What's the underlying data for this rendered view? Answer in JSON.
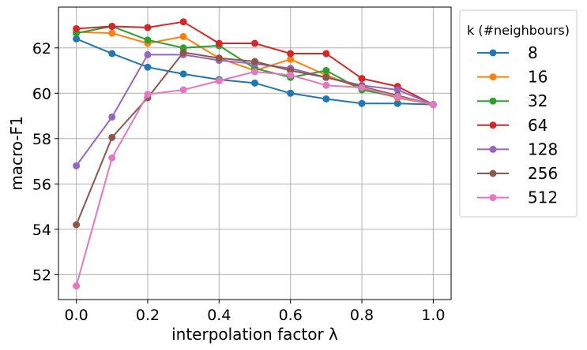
{
  "chart_data": {
    "type": "line",
    "xlabel": "interpolation factor λ",
    "ylabel": "macro-F1",
    "xlim": [
      -0.05,
      1.05
    ],
    "ylim": [
      50.9,
      63.8
    ],
    "grid": true,
    "legend_position": "outside-right",
    "xticks": [
      0.0,
      0.2,
      0.4,
      0.6,
      0.8,
      1.0
    ],
    "xtick_labels": [
      "0.0",
      "0.2",
      "0.4",
      "0.6",
      "0.8",
      "1.0"
    ],
    "yticks": [
      52,
      54,
      56,
      58,
      60,
      62
    ],
    "ytick_labels": [
      "52",
      "54",
      "56",
      "58",
      "60",
      "62"
    ],
    "legend_title": "k (#neighbours)",
    "x": [
      0.0,
      0.1,
      0.2,
      0.3,
      0.4,
      0.5,
      0.6,
      0.7,
      0.8,
      0.9,
      1.0
    ],
    "series": [
      {
        "name": "8",
        "color": "#1f77b4",
        "values": [
          62.4,
          61.75,
          61.15,
          60.85,
          60.6,
          60.45,
          60.0,
          59.75,
          59.55,
          59.55,
          59.5
        ]
      },
      {
        "name": "16",
        "color": "#ff7f0e",
        "values": [
          62.7,
          62.65,
          62.2,
          62.5,
          61.55,
          61.0,
          61.5,
          60.8,
          60.2,
          59.8,
          59.5
        ]
      },
      {
        "name": "32",
        "color": "#2ca02c",
        "values": [
          62.65,
          62.95,
          62.35,
          62.0,
          62.1,
          61.1,
          60.7,
          61.0,
          60.15,
          59.85,
          59.5
        ]
      },
      {
        "name": "64",
        "color": "#d62728",
        "values": [
          62.85,
          62.95,
          62.9,
          63.15,
          62.2,
          62.2,
          61.75,
          61.75,
          60.65,
          60.3,
          59.5
        ]
      },
      {
        "name": "128",
        "color": "#9467bd",
        "values": [
          56.8,
          58.95,
          61.7,
          61.7,
          61.45,
          61.3,
          61.1,
          60.7,
          60.35,
          60.15,
          59.5
        ]
      },
      {
        "name": "256",
        "color": "#8c564b",
        "values": [
          54.2,
          58.05,
          59.8,
          61.8,
          61.55,
          61.4,
          61.0,
          60.7,
          60.3,
          59.9,
          59.5
        ]
      },
      {
        "name": "512",
        "color": "#e377c2",
        "values": [
          51.5,
          57.15,
          59.95,
          60.15,
          60.55,
          60.95,
          60.8,
          60.35,
          60.25,
          59.85,
          59.5
        ]
      }
    ]
  }
}
